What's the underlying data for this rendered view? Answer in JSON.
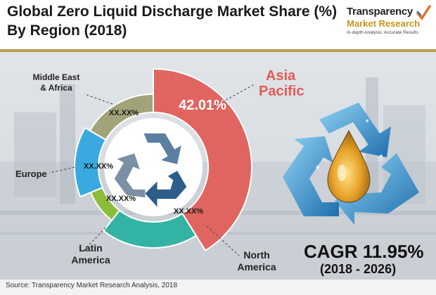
{
  "header": {
    "title": "Global Zero Liquid Discharge Market Share (%)",
    "subtitle": "By Region (2018)"
  },
  "logo": {
    "line1": "Transparency",
    "line2": "Market Research",
    "tagline": "In-depth Analysis, Accurate Results",
    "icon": "checkmark-logo-icon"
  },
  "chart_data": {
    "type": "pie",
    "style": "donut",
    "categories": [
      "Asia Pacific",
      "North America",
      "Latin America",
      "Europe",
      "Middle East & Africa"
    ],
    "value_labels": [
      "42.01%",
      "XX.XX%",
      "XX.XX%",
      "XX.XX%",
      "XX.XX%"
    ],
    "values": [
      42.01,
      null,
      null,
      null,
      null
    ],
    "colors": [
      "#e06560",
      "#33b3a4",
      "#8cbd3a",
      "#3aa9df",
      "#a3a37b"
    ]
  },
  "labels": {
    "asia": "Asia\nPacific",
    "north_america": "North\nAmerica",
    "latin_america": "Latin\nAmerica",
    "europe": "Europe",
    "mea": "Middle East\n& Africa"
  },
  "cagr": {
    "value": "CAGR 11.95%",
    "period": "(2018 - 2026)"
  },
  "source": "Source: Transparency Market Research Analysis, 2018",
  "icons": {
    "center": "recycle-icon",
    "right": "recycle-water-drop-icon"
  }
}
